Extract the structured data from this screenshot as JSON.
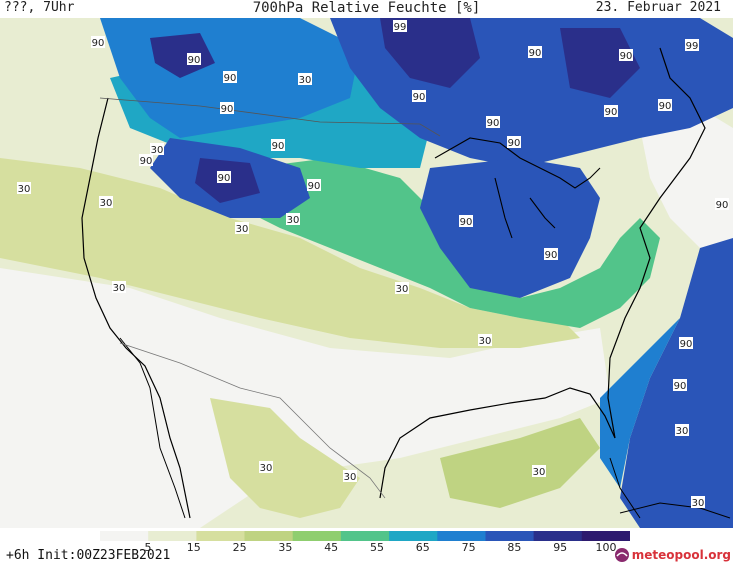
{
  "header": {
    "left": "???, 7Uhr",
    "title": "700hPa Relative Feuchte [%]",
    "date": "23. Februar 2021"
  },
  "map": {
    "contour_labels": [
      "90",
      "30",
      "99"
    ],
    "colors": {
      "ocean_dry": "#f4f4f2",
      "level_15": "#e8edd2",
      "level_25": "#d6df9f",
      "level_35": "#bfd382",
      "level_45": "#8fce6f",
      "level_55": "#52c48a",
      "level_65": "#1fa7c5",
      "level_75": "#1f7fd0",
      "level_85": "#2a55b8",
      "level_95": "#2a2f8a",
      "level_100": "#2d1a6e",
      "coast": "#000000",
      "border": "#555555"
    }
  },
  "colorbar": {
    "ticks": [
      "5",
      "15",
      "25",
      "35",
      "45",
      "55",
      "65",
      "75",
      "85",
      "95",
      "100"
    ],
    "colors": [
      "#f4f4f2",
      "#e8edd2",
      "#d6df9f",
      "#bfd382",
      "#8fce6f",
      "#52c48a",
      "#1fa7c5",
      "#1f7fd0",
      "#2a55b8",
      "#2a2f8a",
      "#2d1a6e"
    ]
  },
  "footer": {
    "left": "+6h Init:00Z23FEB2021",
    "logo": "meteopool.org"
  }
}
